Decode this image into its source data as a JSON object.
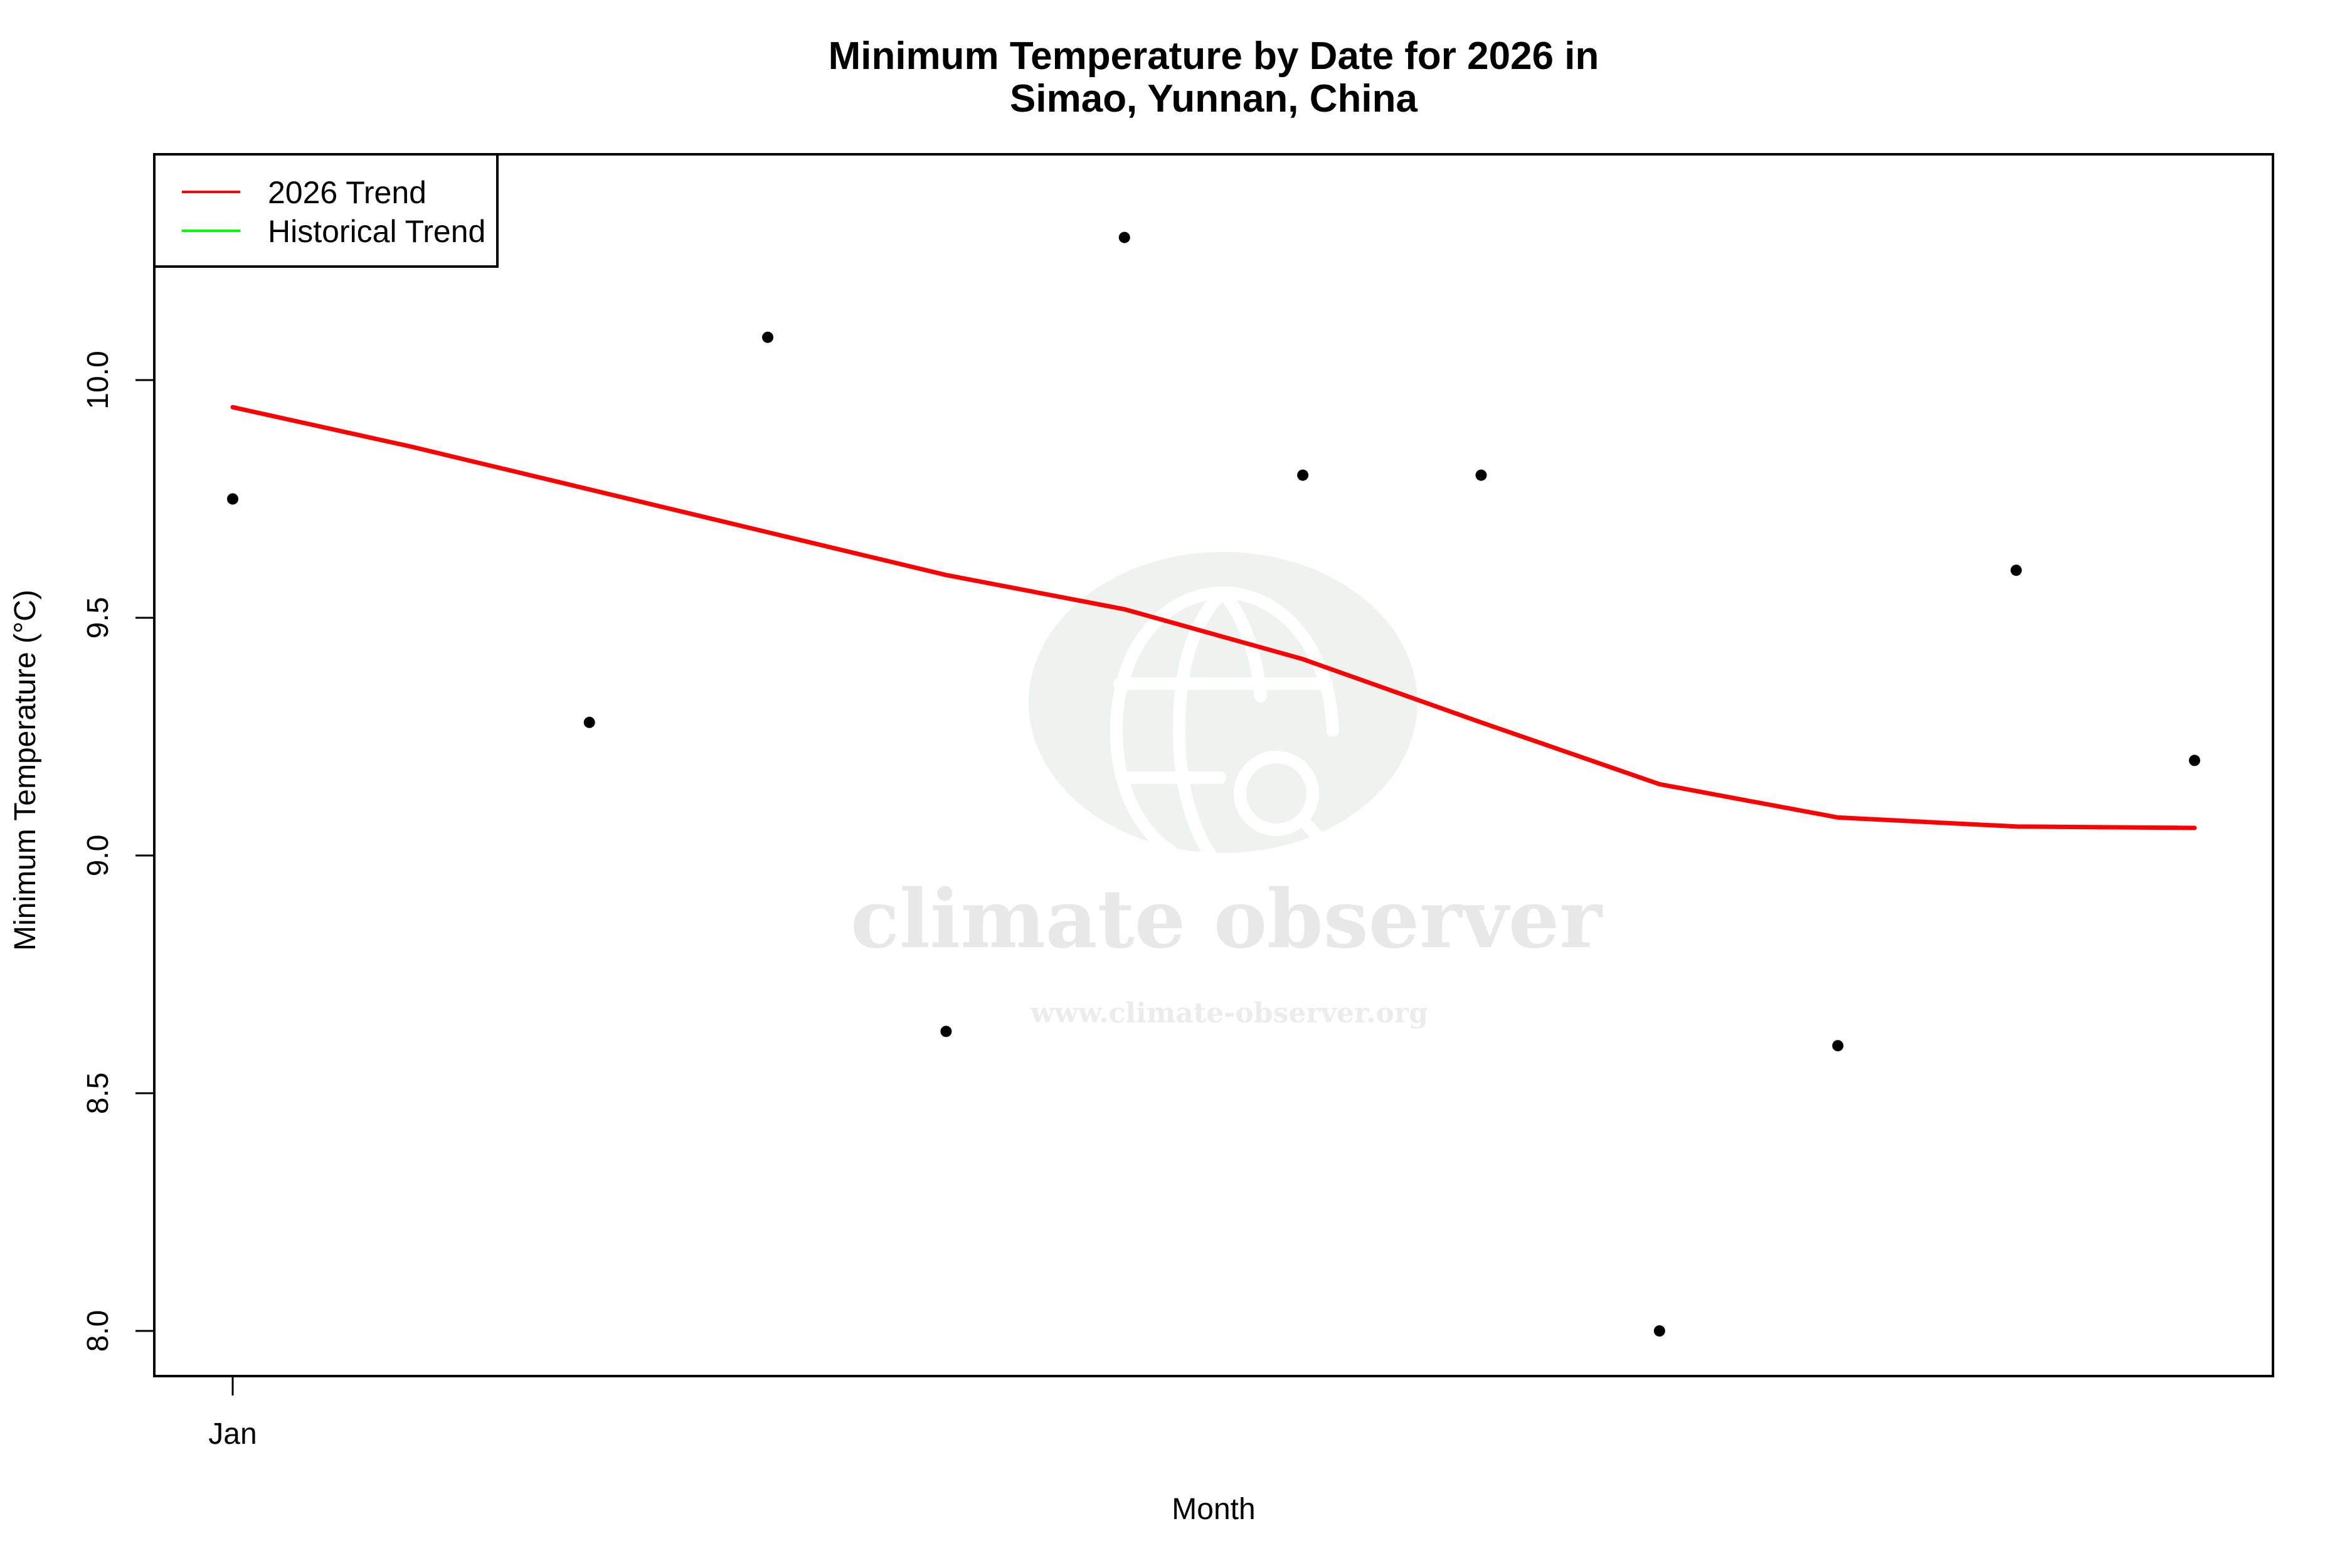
{
  "chart_data": {
    "type": "scatter",
    "title": "Minimum Temperature by Date for 2026 in Simao, Yunnan, China",
    "title_lines": [
      "Minimum Temperature by Date for 2026 in",
      "Simao, Yunnan, China"
    ],
    "xlabel": "Month",
    "ylabel": "Minimum Temperature (°C)",
    "x_ticks": [
      {
        "index": 0,
        "label": "Jan"
      }
    ],
    "y_ticks": [
      8.0,
      8.5,
      9.0,
      9.5,
      10.0
    ],
    "y_tick_labels": [
      "8.0",
      "8.5",
      "9.0",
      "9.5",
      "10.0"
    ],
    "ylim": [
      7.905,
      10.48
    ],
    "x_index_range": [
      -0.44,
      11.44
    ],
    "grid": false,
    "legend_position": "top-left",
    "points": {
      "name": "Daily minimum (2026)",
      "color": "#000000",
      "x_index": [
        0,
        2,
        3,
        4,
        5,
        6,
        7,
        8,
        9,
        10,
        11
      ],
      "values": [
        9.75,
        9.28,
        10.09,
        8.63,
        10.3,
        9.8,
        9.8,
        8.0,
        8.6,
        9.6,
        9.2
      ]
    },
    "series": [
      {
        "name": "2026 Trend",
        "color": "#ff0000",
        "x_index": [
          0,
          1,
          2,
          3,
          4,
          5,
          6,
          7,
          8,
          9,
          10,
          11
        ],
        "values": [
          9.943,
          9.86,
          9.77,
          9.68,
          9.59,
          9.518,
          9.413,
          9.28,
          9.15,
          9.08,
          9.061,
          9.058
        ]
      },
      {
        "name": "Historical Trend",
        "color": "#00ff00",
        "x_index": [],
        "values": []
      }
    ]
  },
  "legend": {
    "items": [
      {
        "label": "2026 Trend",
        "color": "#ff0000"
      },
      {
        "label": "Historical Trend",
        "color": "#00ff00"
      }
    ]
  },
  "watermark": {
    "brand": "climate observer",
    "url": "www.climate-observer.org",
    "icon": "globe-search-icon",
    "circle_color": "#eef3ef"
  }
}
